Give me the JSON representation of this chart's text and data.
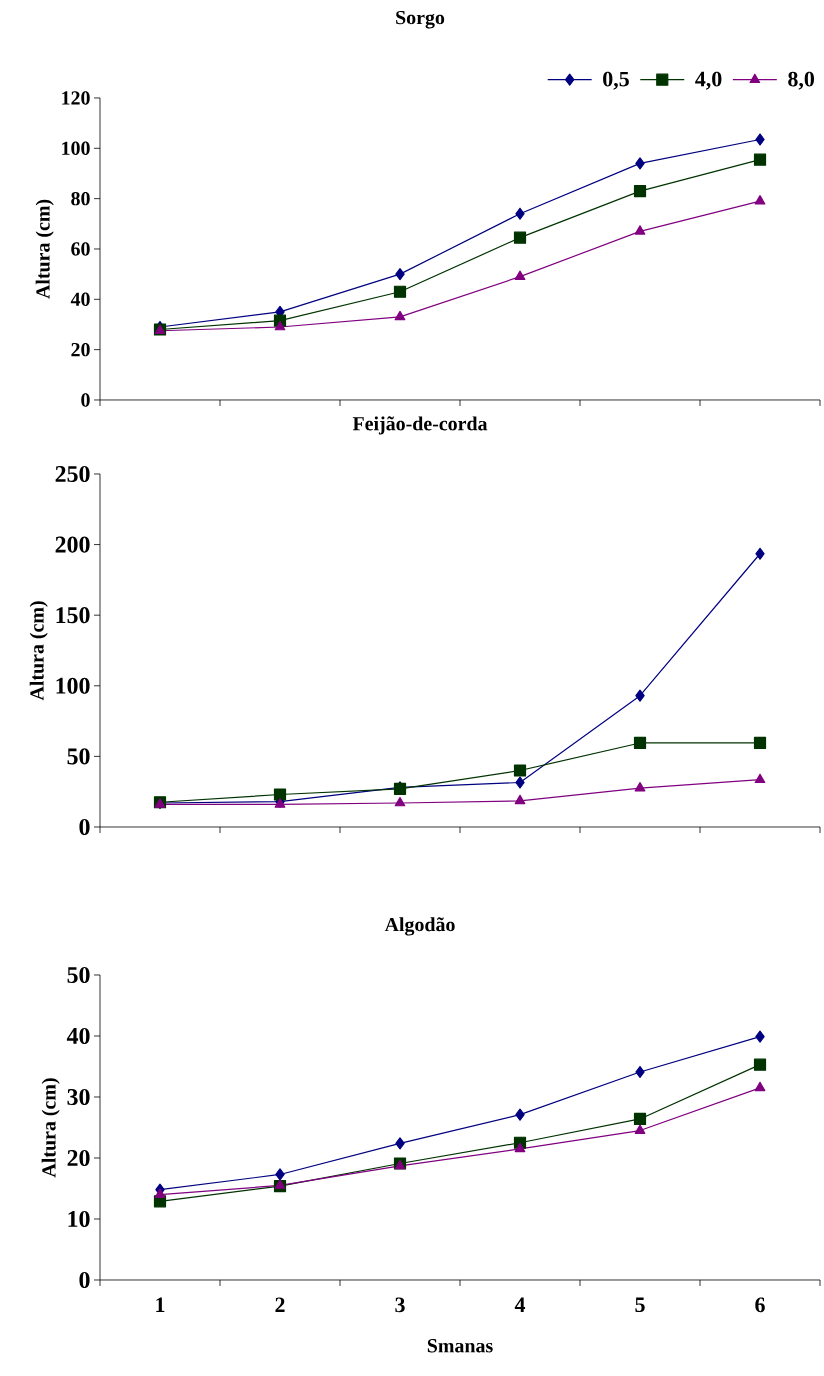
{
  "chart_data": [
    {
      "type": "line",
      "title": "Sorgo",
      "ylabel": "Altura (cm)",
      "categories": [
        "1",
        "2",
        "3",
        "4",
        "5",
        "6"
      ],
      "ylim": [
        0,
        120
      ],
      "yticks": [
        0,
        20,
        40,
        60,
        80,
        100,
        120
      ],
      "tick_labels": "y",
      "legend": "top right",
      "series": [
        {
          "name": "0,5",
          "color": "#000080",
          "marker": "diamond",
          "values": [
            29,
            35,
            50,
            74,
            94,
            103.5
          ]
        },
        {
          "name": "4,0",
          "color": "#003300",
          "marker": "square",
          "values": [
            28,
            31.5,
            43,
            64.5,
            83,
            95.5
          ]
        },
        {
          "name": "8,0",
          "color": "#800080",
          "marker": "triangle",
          "values": [
            27.5,
            29,
            33,
            49,
            67,
            79
          ]
        }
      ]
    },
    {
      "type": "line",
      "title": "Feijão-de-corda",
      "ylabel": "Altura (cm)",
      "categories": [
        "1",
        "2",
        "3",
        "4",
        "5",
        "6"
      ],
      "ylim": [
        0,
        250
      ],
      "yticks": [
        0,
        50,
        100,
        150,
        200,
        250
      ],
      "tick_labels": "y",
      "series": [
        {
          "color": "#000080",
          "marker": "diamond",
          "values": [
            17,
            18,
            28,
            31.5,
            93,
            193.5
          ]
        },
        {
          "color": "#003300",
          "marker": "square",
          "values": [
            17.5,
            23,
            27,
            40,
            59.5,
            59.5
          ]
        },
        {
          "color": "#800080",
          "marker": "triangle",
          "values": [
            16,
            16,
            17,
            18.5,
            27.5,
            33.5
          ]
        }
      ]
    },
    {
      "type": "line",
      "title": "Algodão",
      "ylabel": "Altura (cm)",
      "xlabel": "Smanas",
      "categories": [
        "1",
        "2",
        "3",
        "4",
        "5",
        "6"
      ],
      "ylim": [
        0,
        50
      ],
      "yticks": [
        0,
        10,
        20,
        30,
        40,
        50
      ],
      "series": [
        {
          "color": "#000080",
          "marker": "diamond",
          "values": [
            14.8,
            17.3,
            22.4,
            27.1,
            34.1,
            39.9
          ]
        },
        {
          "color": "#003300",
          "marker": "square",
          "values": [
            12.9,
            15.4,
            19.1,
            22.5,
            26.4,
            35.3
          ]
        },
        {
          "color": "#800080",
          "marker": "triangle",
          "values": [
            14,
            15.5,
            18.7,
            21.5,
            24.5,
            31.5
          ]
        }
      ]
    }
  ]
}
